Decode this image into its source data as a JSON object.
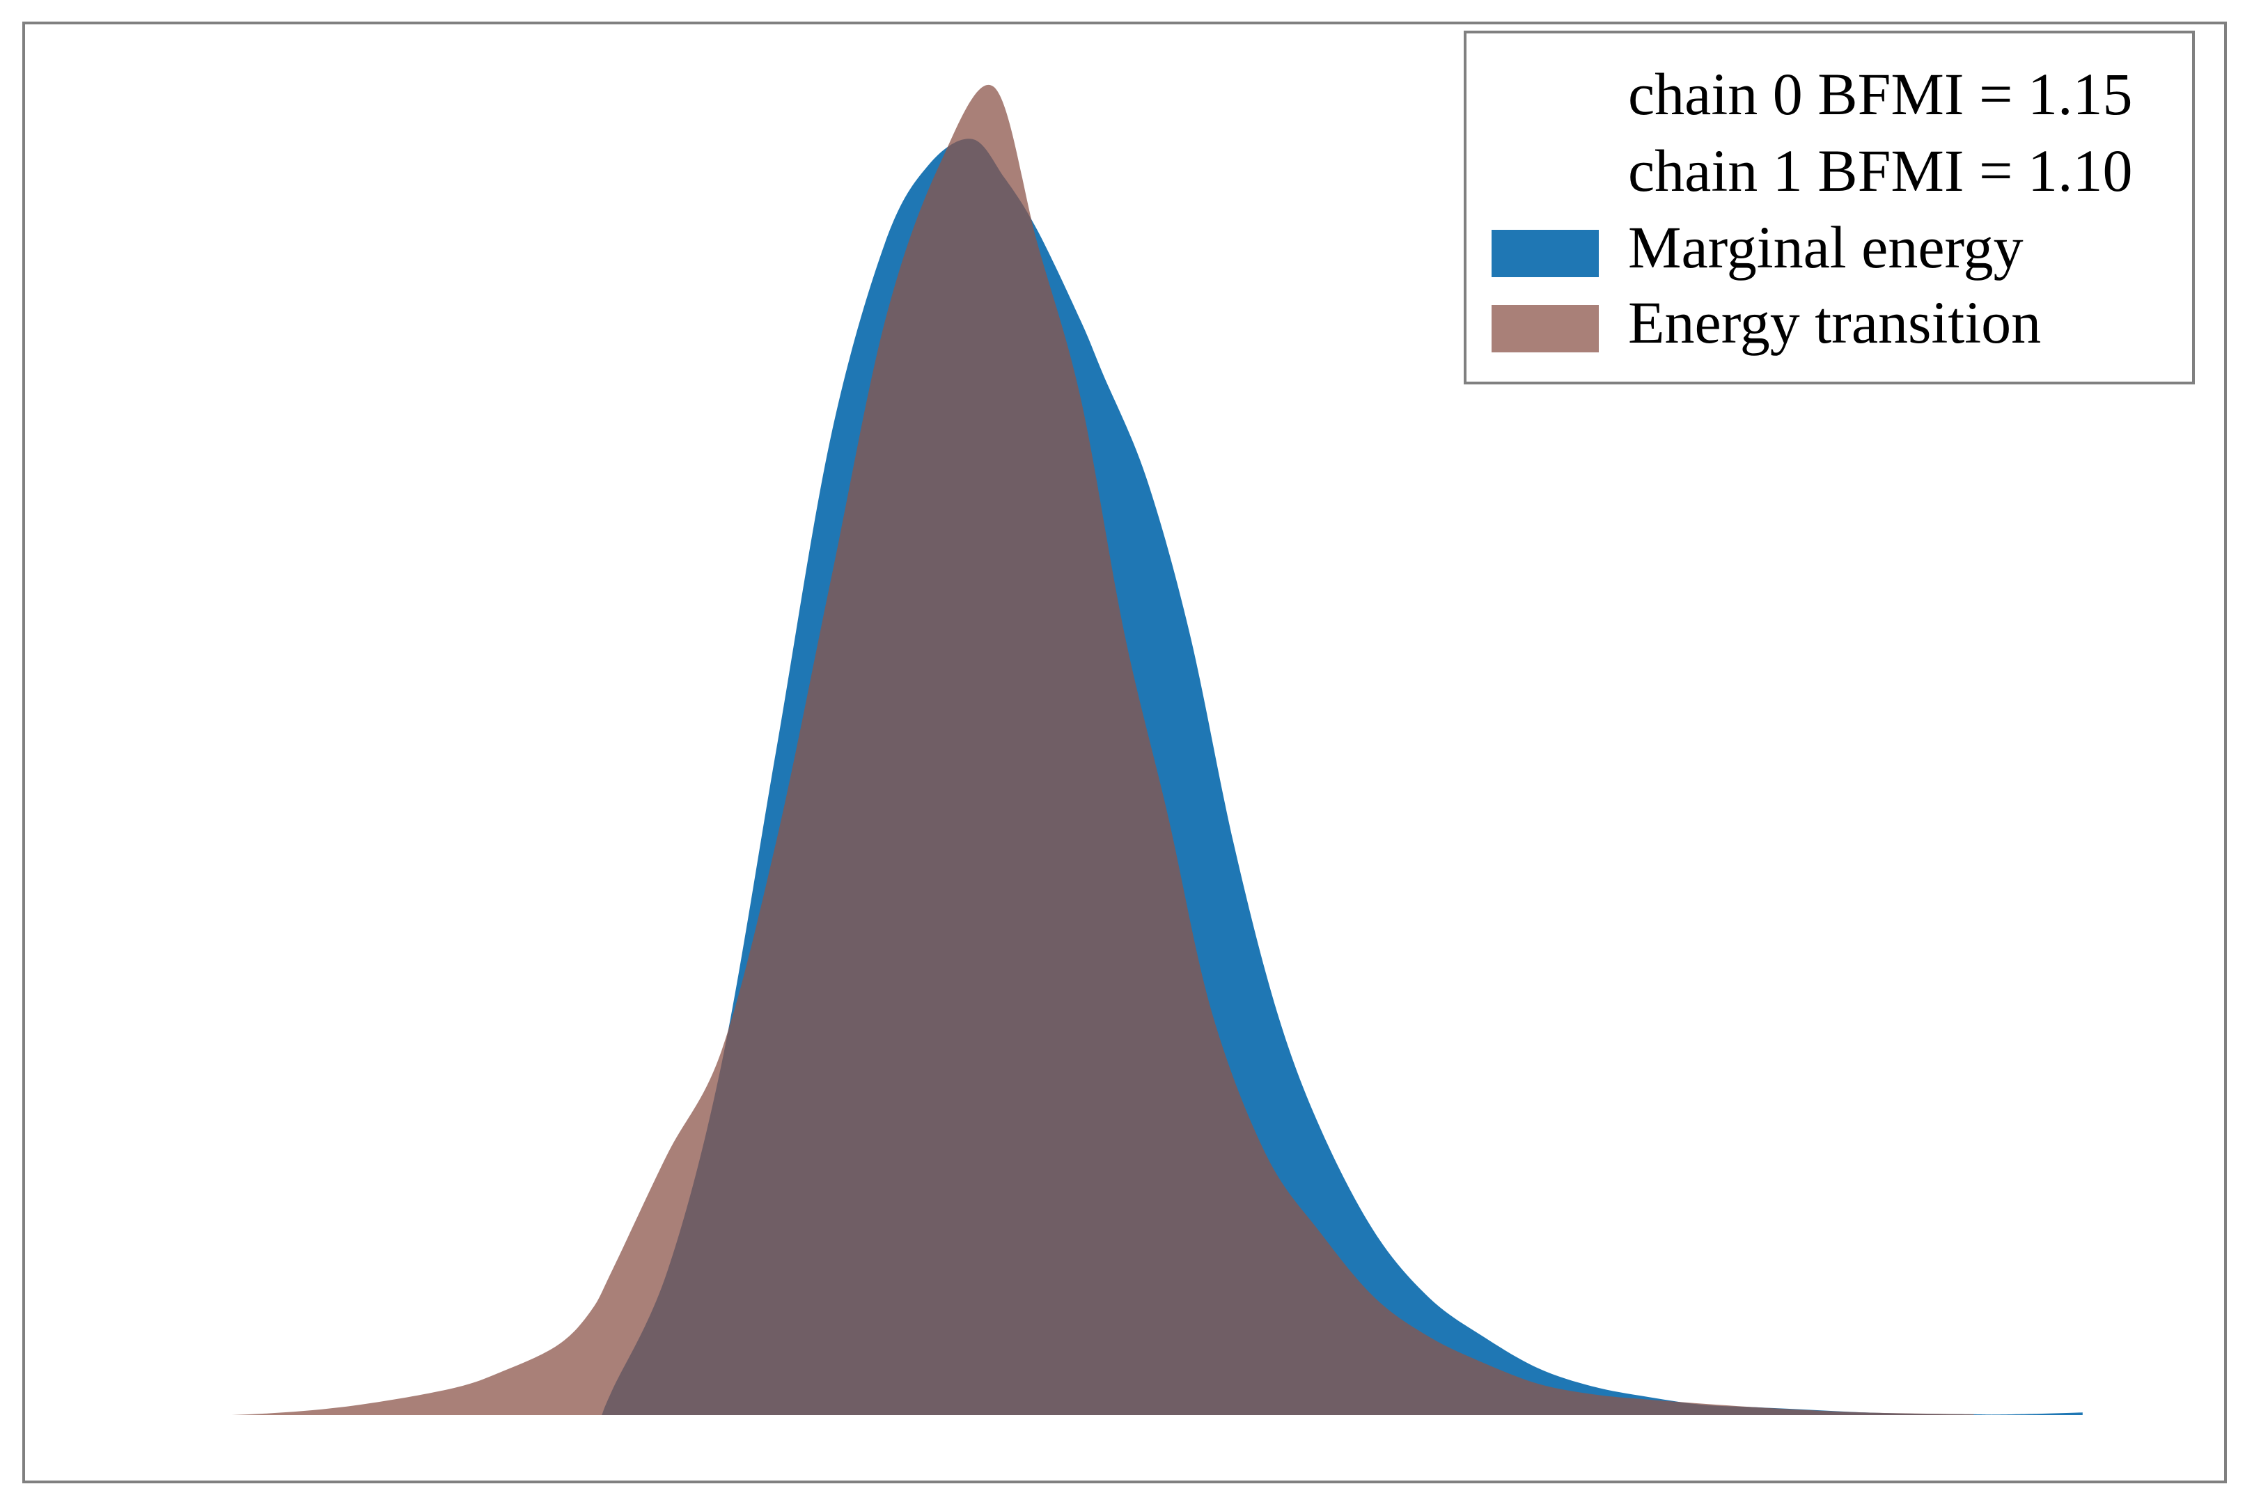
{
  "chart_data": {
    "type": "area",
    "title": "",
    "xlabel": "",
    "ylabel": "",
    "xlim": [
      -4.5,
      4.6
    ],
    "ylim": [
      0,
      0.53
    ],
    "legend_position": "top-right",
    "grid": false,
    "bfmi": [
      {
        "label": "chain 0 BFMI = 1.15"
      },
      {
        "label": "chain 1 BFMI = 1.10"
      }
    ],
    "series": [
      {
        "name": "Marginal energy",
        "color": "#1f77b4",
        "x": [
          -2.3,
          -2.25,
          -2.0,
          -1.75,
          -1.5,
          -1.25,
          -1.0,
          -0.8,
          -0.6,
          -0.45,
          -0.3,
          -0.1,
          0.0,
          0.2,
          0.4,
          0.6,
          0.8,
          1.0,
          1.25,
          1.5,
          1.75,
          2.0,
          2.25,
          2.5,
          2.75,
          3.0,
          3.25,
          3.5,
          3.75,
          4.0,
          4.1,
          4.3,
          4.5
        ],
        "y": [
          0.0,
          0.01,
          0.055,
          0.135,
          0.255,
          0.375,
          0.45,
          0.48,
          0.49,
          0.475,
          0.455,
          0.42,
          0.4,
          0.36,
          0.3,
          0.22,
          0.155,
          0.11,
          0.07,
          0.045,
          0.03,
          0.018,
          0.011,
          0.007,
          0.004,
          0.003,
          0.002,
          0.001,
          0.0005,
          0.0003,
          0.0002,
          0.0005,
          0.001
        ]
      },
      {
        "name": "Energy transition",
        "color": "#8c564b",
        "x": [
          -4.5,
          -4.0,
          -3.5,
          -3.0,
          -2.75,
          -2.5,
          -2.35,
          -2.25,
          -2.0,
          -1.75,
          -1.5,
          -1.25,
          -1.0,
          -0.75,
          -0.5,
          -0.3,
          -0.1,
          0.1,
          0.3,
          0.5,
          0.75,
          1.0,
          1.25,
          1.5,
          1.75,
          2.0,
          2.25,
          2.5,
          3.0,
          3.5,
          4.0
        ],
        "y": [
          0.0,
          0.0,
          0.003,
          0.01,
          0.017,
          0.027,
          0.04,
          0.056,
          0.1,
          0.14,
          0.22,
          0.32,
          0.42,
          0.48,
          0.51,
          0.45,
          0.39,
          0.3,
          0.23,
          0.155,
          0.1,
          0.07,
          0.045,
          0.03,
          0.02,
          0.012,
          0.008,
          0.006,
          0.003,
          0.001,
          0.0003
        ]
      }
    ]
  }
}
